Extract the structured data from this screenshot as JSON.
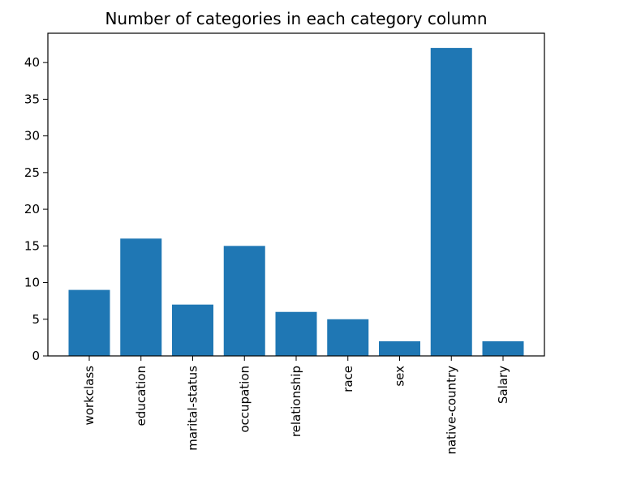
{
  "chart_data": {
    "type": "bar",
    "title": "Number of categories in each category column",
    "xlabel": "",
    "ylabel": "",
    "categories": [
      "workclass",
      "education",
      "marital-status",
      "occupation",
      "relationship",
      "race",
      "sex",
      "native-country",
      "Salary"
    ],
    "values": [
      9,
      16,
      7,
      15,
      6,
      5,
      2,
      42,
      2
    ],
    "ylim": [
      0,
      44
    ],
    "yticks": [
      0,
      5,
      10,
      15,
      20,
      25,
      30,
      35,
      40
    ],
    "grid": false,
    "bar_color": "#1f77b4"
  }
}
